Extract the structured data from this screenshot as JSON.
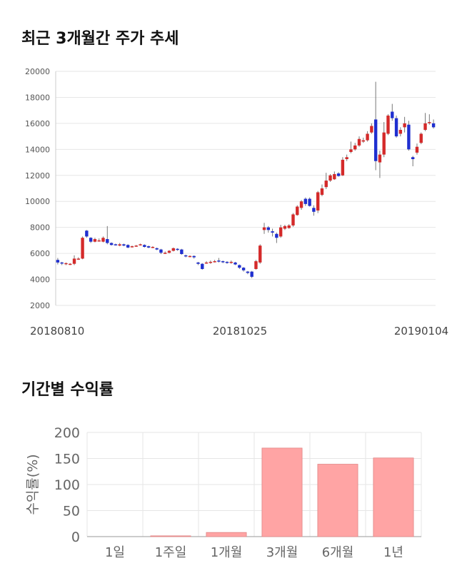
{
  "sections": {
    "price_title": "최근 3개월간 주가 추세",
    "return_title": "기간별 수익률"
  },
  "colors": {
    "up": "#d42a2a",
    "down": "#1f2fd0",
    "bar_fill": "#ffa4a4",
    "bar_stroke": "#e08585",
    "grid": "#e6e6e6"
  },
  "chart_data": [
    {
      "type": "candlestick",
      "title": "최근 3개월간 주가 추세",
      "ylim": [
        2000,
        20000
      ],
      "y_ticks": [
        "2000",
        "4000",
        "6000",
        "8000",
        "10000",
        "12000",
        "14000",
        "16000",
        "18000",
        "20000"
      ],
      "x_ticks": [
        "20180810",
        "20181025",
        "20190104"
      ],
      "grid": true,
      "candles": [
        [
          5500,
          5300,
          5650,
          5150
        ],
        [
          5300,
          5250,
          5350,
          5100
        ],
        [
          5200,
          5250,
          5300,
          5100
        ],
        [
          5200,
          5200,
          5250,
          5100
        ],
        [
          5200,
          5600,
          5850,
          5100
        ],
        [
          5550,
          5600,
          5700,
          5500
        ],
        [
          5600,
          7200,
          7300,
          5550
        ],
        [
          7750,
          7300,
          7800,
          7200
        ],
        [
          7200,
          6900,
          7250,
          6800
        ],
        [
          6900,
          7100,
          7200,
          6850
        ],
        [
          7000,
          7000,
          7150,
          6900
        ],
        [
          6900,
          7200,
          7300,
          6850
        ],
        [
          7100,
          6800,
          8100,
          6700
        ],
        [
          6800,
          6650,
          6850,
          6600
        ],
        [
          6700,
          6650,
          6750,
          6600
        ],
        [
          6600,
          6700,
          6800,
          6550
        ],
        [
          6700,
          6600,
          6750,
          6550
        ],
        [
          6650,
          6450,
          6700,
          6400
        ],
        [
          6500,
          6550,
          6600,
          6450
        ],
        [
          6550,
          6600,
          6650,
          6500
        ],
        [
          6650,
          6700,
          6750,
          6600
        ],
        [
          6650,
          6500,
          6700,
          6450
        ],
        [
          6550,
          6450,
          6600,
          6400
        ],
        [
          6450,
          6500,
          6550,
          6400
        ],
        [
          6400,
          6300,
          6450,
          6250
        ],
        [
          6300,
          6050,
          6350,
          5950
        ],
        [
          6050,
          6050,
          6150,
          5950
        ],
        [
          6050,
          6200,
          6250,
          6000
        ],
        [
          6200,
          6400,
          6450,
          6150
        ],
        [
          6350,
          6300,
          6400,
          6200
        ],
        [
          6300,
          5950,
          6350,
          5900
        ],
        [
          5850,
          5800,
          5900,
          5700
        ],
        [
          5750,
          5800,
          5850,
          5700
        ],
        [
          5800,
          5700,
          5850,
          5600
        ],
        [
          5300,
          5200,
          5350,
          5100
        ],
        [
          5200,
          4800,
          5250,
          4750
        ],
        [
          5250,
          5300,
          5400,
          5200
        ],
        [
          5300,
          5350,
          5450,
          5200
        ],
        [
          5350,
          5400,
          5500,
          5300
        ],
        [
          5450,
          5400,
          5650,
          5300
        ],
        [
          5400,
          5350,
          5450,
          5250
        ],
        [
          5350,
          5300,
          5400,
          5200
        ],
        [
          5300,
          5350,
          5450,
          5200
        ],
        [
          5300,
          5150,
          5350,
          5100
        ],
        [
          5100,
          4900,
          5150,
          4800
        ],
        [
          4900,
          4700,
          4950,
          4600
        ],
        [
          4600,
          4500,
          4650,
          4400
        ],
        [
          4600,
          4200,
          4650,
          4100
        ],
        [
          4800,
          5400,
          5500,
          4750
        ],
        [
          5300,
          6600,
          6700,
          5200
        ],
        [
          7800,
          8000,
          8350,
          7500
        ],
        [
          8000,
          7800,
          8100,
          7600
        ],
        [
          7700,
          7600,
          7900,
          7300
        ],
        [
          7500,
          7200,
          7600,
          6800
        ],
        [
          7300,
          8000,
          8200,
          7200
        ],
        [
          7900,
          8100,
          8200,
          7800
        ],
        [
          7950,
          8150,
          8250,
          7900
        ],
        [
          8150,
          9000,
          9100,
          8050
        ],
        [
          8950,
          9600,
          9700,
          8900
        ],
        [
          9500,
          10000,
          10100,
          9350
        ],
        [
          10200,
          9800,
          10300,
          9650
        ],
        [
          10200,
          9650,
          10300,
          9600
        ],
        [
          9500,
          9200,
          9700,
          8900
        ],
        [
          9300,
          10700,
          10800,
          9100
        ],
        [
          10500,
          11000,
          11300,
          10400
        ],
        [
          11100,
          11600,
          12200,
          10950
        ],
        [
          11600,
          12000,
          12100,
          11500
        ],
        [
          11700,
          12100,
          12300,
          11650
        ],
        [
          12150,
          11950,
          12250,
          11900
        ],
        [
          12000,
          13200,
          13400,
          11950
        ],
        [
          13250,
          13400,
          13600,
          13100
        ],
        [
          13800,
          14000,
          14600,
          13700
        ],
        [
          14000,
          14300,
          14500,
          13900
        ],
        [
          14300,
          14800,
          15000,
          14200
        ],
        [
          14600,
          14700,
          14900,
          14500
        ],
        [
          14700,
          15200,
          15400,
          14600
        ],
        [
          15300,
          15800,
          16000,
          15200
        ],
        [
          16300,
          13100,
          19200,
          12400
        ],
        [
          13000,
          13600,
          13900,
          11800
        ],
        [
          13600,
          15300,
          16100,
          13400
        ],
        [
          15200,
          16600,
          16700,
          15100
        ],
        [
          16900,
          16400,
          17500,
          16200
        ],
        [
          16400,
          15000,
          16600,
          14900
        ],
        [
          15200,
          15500,
          15700,
          15000
        ],
        [
          15700,
          16000,
          16500,
          15300
        ],
        [
          15900,
          14000,
          16200,
          13900
        ],
        [
          13400,
          13250,
          13500,
          12700
        ],
        [
          13750,
          14200,
          14450,
          13600
        ],
        [
          14500,
          15200,
          15300,
          14400
        ],
        [
          15500,
          16000,
          16800,
          15400
        ],
        [
          16100,
          16100,
          16700,
          15900
        ],
        [
          16000,
          15700,
          16300,
          15600
        ]
      ]
    },
    {
      "type": "bar",
      "categories": [
        "1일",
        "1주일",
        "1개월",
        "3개월",
        "6개월",
        "1년"
      ],
      "values": [
        0,
        1.5,
        8,
        170,
        139,
        151
      ],
      "ylabel": "수익률(%)",
      "ylim": [
        0,
        200
      ],
      "y_ticks": [
        "0",
        "50",
        "100",
        "150",
        "200"
      ],
      "grid": true
    }
  ]
}
